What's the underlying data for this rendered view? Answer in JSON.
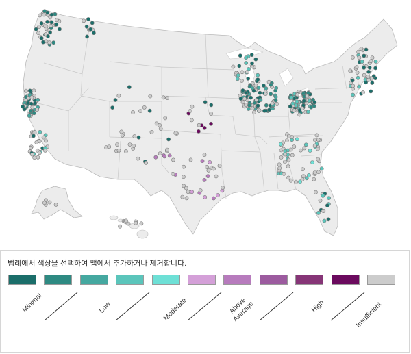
{
  "legend": {
    "instruction": "범례에서 색상을 선택하여 맵에서 추가하거나 제거합니다.",
    "swatches": [
      {
        "color": "#1b6e6a"
      },
      {
        "color": "#2e8a82"
      },
      {
        "color": "#45a8a0"
      },
      {
        "color": "#5bc5bb"
      },
      {
        "color": "#6ee0d6"
      },
      {
        "color": "#d4a0d8"
      },
      {
        "color": "#b77bbd"
      },
      {
        "color": "#9c5b9f"
      },
      {
        "color": "#863577"
      },
      {
        "color": "#6b0a5e"
      },
      {
        "color": "#cccccc"
      }
    ],
    "labels": {
      "minimal": "Minimal",
      "low": "Low",
      "moderate": "Moderate",
      "above_average": "Above\nAverage",
      "high": "High",
      "insufficient": "Insufficient"
    }
  },
  "map": {
    "land_color": "#ececec",
    "border_color": "#c8c8c8",
    "dot_stroke": "#7a7a7a"
  }
}
